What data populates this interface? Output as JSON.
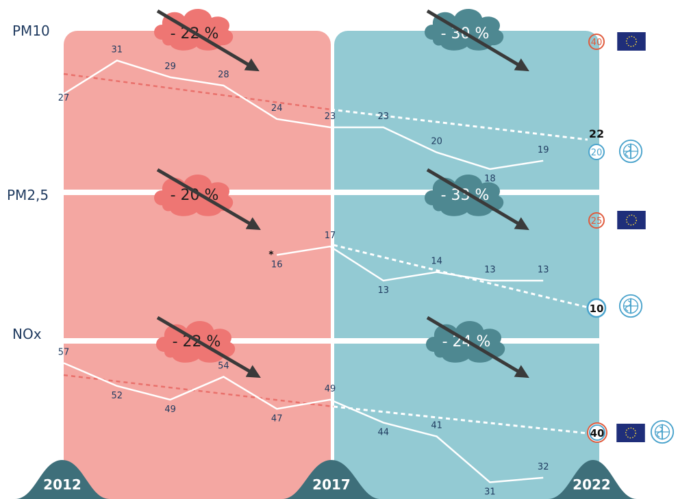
{
  "colors": {
    "period1_bg": "#f4a7a2",
    "period2_bg": "#93cad3",
    "cloud1": "#ee7673",
    "cloud2": "#4e8891",
    "arrow": "#3a3a3a",
    "line": "#ffffff",
    "trend1": "#e9706b",
    "eu_red": "#e05a3c",
    "who_blue": "#4aa3cc",
    "flag": "#1f2e7a",
    "year_hill": "#3e6f7a",
    "label_text": "#1f3a5f"
  },
  "years": [
    "2012",
    "2017",
    "2022"
  ],
  "chart_data": [
    {
      "type": "line",
      "title": "PM10",
      "x": [
        2012,
        2013,
        2014,
        2015,
        2016,
        2017,
        2018,
        2019,
        2020,
        2021
      ],
      "values": [
        27,
        31,
        29,
        28,
        24,
        23,
        23,
        20,
        18,
        19
      ],
      "labels": [
        "27",
        "31",
        "29",
        "28",
        "24",
        "23",
        "23",
        "20",
        "18",
        "19"
      ],
      "change_2012_2017": "- 22 %",
      "change_2017_2022": "- 30 %",
      "eu_limit": "40",
      "who_guideline": "20",
      "target_2022": "22"
    },
    {
      "type": "line",
      "title": "PM2,5",
      "x": [
        2016,
        2017,
        2018,
        2019,
        2020,
        2021
      ],
      "values": [
        16,
        17,
        13,
        14,
        13,
        13
      ],
      "labels": [
        "16",
        "17",
        "13",
        "14",
        "13",
        "13"
      ],
      "footnote_marker": "*",
      "change_2012_2017": "- 20 %",
      "change_2017_2022": "- 33 %",
      "eu_limit": "25",
      "who_guideline": "10"
    },
    {
      "type": "line",
      "title": "NOx",
      "x": [
        2012,
        2013,
        2014,
        2015,
        2016,
        2017,
        2018,
        2019,
        2020,
        2021
      ],
      "values": [
        57,
        52,
        49,
        54,
        47,
        49,
        44,
        41,
        31,
        32
      ],
      "labels": [
        "57",
        "52",
        "49",
        "54",
        "47",
        "49",
        "44",
        "41",
        "31",
        "32"
      ],
      "change_2012_2017": "- 22 %",
      "change_2017_2022": "- 24 %",
      "limit_eu_who": "40"
    }
  ]
}
